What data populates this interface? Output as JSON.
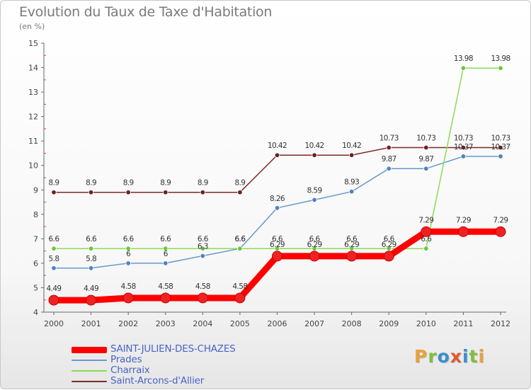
{
  "header": {
    "title": "Evolution du Taux de Taxe d'Habitation",
    "subtitle": "(en %)"
  },
  "logo": {
    "text": "Proxiti",
    "letter_colors": [
      "#e8a33a",
      "#7fbf3f",
      "#3a8fd0",
      "#e05a2a",
      "#3a8fd0",
      "#7fbf3f",
      "#e8a33a"
    ]
  },
  "chart_data": {
    "type": "line",
    "title": "Evolution du Taux de Taxe d'Habitation",
    "subtitle": "(en %)",
    "xlabel": "",
    "ylabel": "",
    "x": [
      "2000",
      "2001",
      "2002",
      "2003",
      "2004",
      "2005",
      "2006",
      "2007",
      "2008",
      "2009",
      "2010",
      "2011",
      "2012"
    ],
    "ylim": [
      4,
      15
    ],
    "yticks": [
      4,
      5,
      6,
      7,
      8,
      9,
      10,
      11,
      12,
      13,
      14,
      15
    ],
    "grid": false,
    "legend_position": "bottom-left",
    "series": [
      {
        "name": "SAINT-JULIEN-DES-CHAZES",
        "color": "#ff0000",
        "marker_color": "#ee2222",
        "emphasis": "thick",
        "values": [
          4.49,
          4.49,
          4.58,
          4.58,
          4.58,
          4.58,
          6.29,
          6.29,
          6.29,
          6.29,
          7.29,
          7.29,
          7.29
        ],
        "labels": [
          "4.49",
          "4.49",
          "4.58",
          "4.58",
          "4.58",
          "4.58",
          "6.29",
          "6.29",
          "6.29",
          "6.29",
          "7.29",
          "7.29",
          "7.29"
        ]
      },
      {
        "name": "Prades",
        "color": "#6699cc",
        "marker_color": "#4f82c0",
        "emphasis": "thin",
        "values": [
          5.8,
          5.8,
          6,
          6,
          6.3,
          6.6,
          8.26,
          8.59,
          8.93,
          9.87,
          9.87,
          10.37,
          10.37
        ],
        "labels": [
          "5.8",
          "5.8",
          "6",
          "6",
          "6.3",
          "6.6",
          "8.26",
          "8.59",
          "8.93",
          "9.87",
          "9.87",
          "10.37",
          "10.37"
        ]
      },
      {
        "name": "Charraix",
        "color": "#88dd55",
        "marker_color": "#6cc63a",
        "emphasis": "thin",
        "values": [
          6.6,
          6.6,
          6.6,
          6.6,
          6.6,
          6.6,
          6.6,
          6.6,
          6.6,
          6.6,
          6.6,
          13.98,
          13.98
        ],
        "labels": [
          "6.6",
          "6.6",
          "6.6",
          "6.6",
          "6.6",
          "6.6",
          "6.6",
          "6.6",
          "6.6",
          "6.6",
          "6.6",
          "13.98",
          "13.98"
        ]
      },
      {
        "name": "Saint-Arcons-d'Allier",
        "color": "#7a2a2a",
        "marker_color": "#6e1e1e",
        "emphasis": "thin",
        "values": [
          8.9,
          8.9,
          8.9,
          8.9,
          8.9,
          8.9,
          10.42,
          10.42,
          10.42,
          10.73,
          10.73,
          10.73,
          10.73
        ],
        "labels": [
          "8.9",
          "8.9",
          "8.9",
          "8.9",
          "8.9",
          "8.9",
          "10.42",
          "10.42",
          "10.42",
          "10.73",
          "10.73",
          "10.73",
          "10.73"
        ]
      }
    ]
  }
}
